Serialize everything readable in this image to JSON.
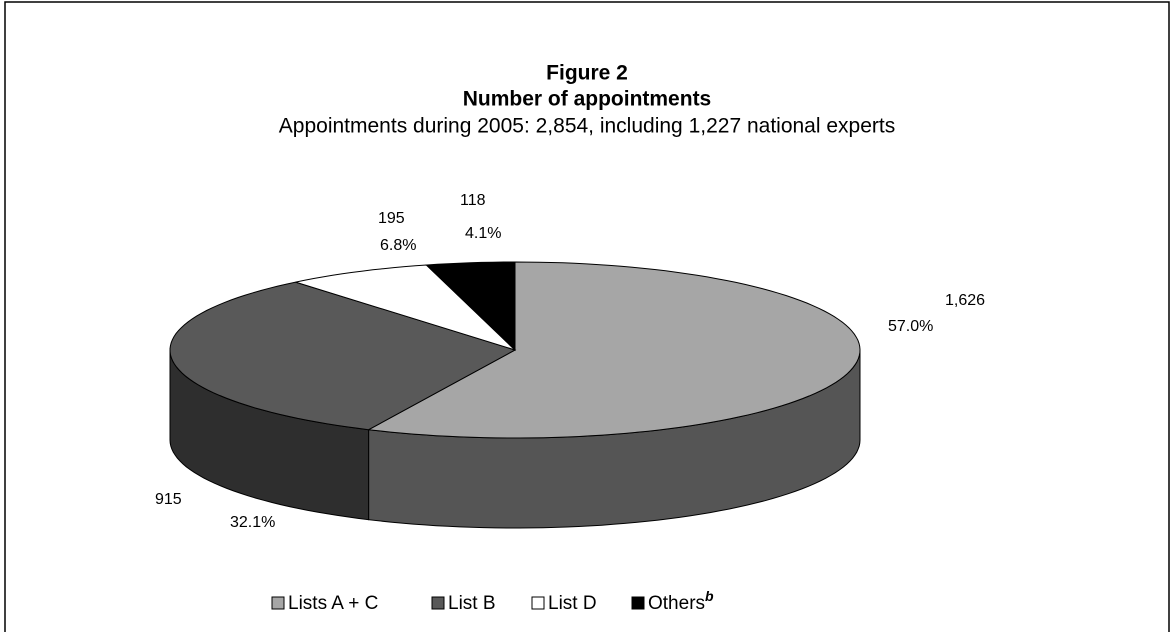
{
  "chart_data": {
    "type": "pie3d",
    "title": "Figure 2",
    "subtitle": "Number of appointments",
    "caption": "Appointments during 2005: 2,854, including 1,227 national experts",
    "categories": [
      "Lists A + C",
      "List B",
      "List D",
      "Others"
    ],
    "footnote_marker": "b",
    "values": [
      1626,
      915,
      195,
      118
    ],
    "value_labels": [
      "1,626",
      "915",
      "195",
      "118"
    ],
    "percents": [
      57.0,
      32.1,
      6.8,
      4.1
    ],
    "percent_labels": [
      "57.0%",
      "32.1%",
      "6.8%",
      "4.1%"
    ],
    "colors": [
      "#a6a6a6",
      "#595959",
      "#ffffff",
      "#000000"
    ],
    "side_colors": [
      "#555555",
      "#2e2e2e",
      "#dddddd",
      "#000000"
    ],
    "legend": "bottom"
  }
}
